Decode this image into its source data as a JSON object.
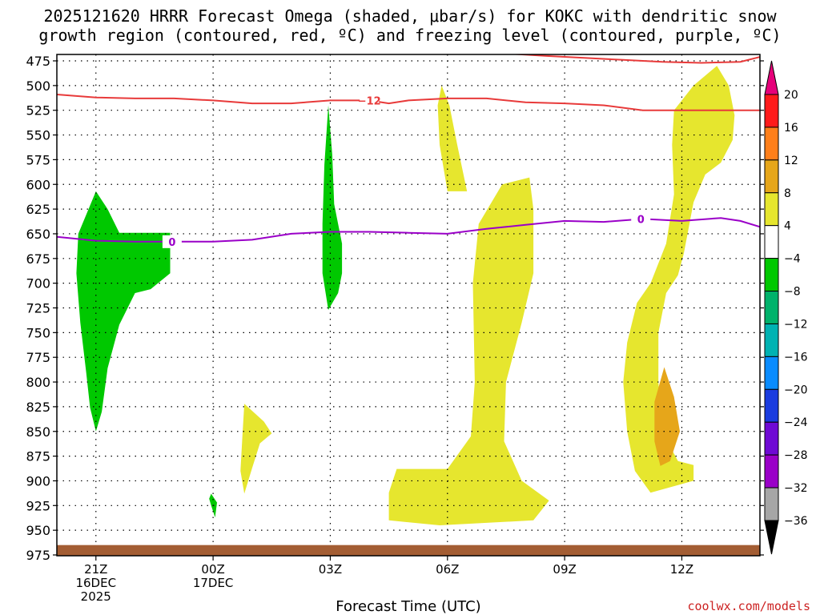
{
  "chart_data": {
    "type": "heatmap",
    "title": "2025121620 HRRR Forecast Omega (shaded, μbar/s) for KOKC with dendritic snow growth region (contoured, red, ºC) and freezing level (contoured, purple, ºC)",
    "title_line1": "2025121620 HRRR Forecast Omega (shaded, μbar/s) for KOKC with dendritic snow",
    "title_line2": "growth region (contoured, red, ºC) and freezing level (contoured, purple, ºC)",
    "xlabel": "Forecast Time (UTC)",
    "credit": "coolwx.com/models",
    "x_range_hours": [
      20,
      38
    ],
    "y_range_mb": [
      475,
      975
    ],
    "y_ticks": [
      475,
      500,
      525,
      550,
      575,
      600,
      625,
      650,
      675,
      700,
      725,
      750,
      775,
      800,
      825,
      850,
      875,
      900,
      925,
      950,
      975
    ],
    "x_ticks": [
      {
        "hour": 21,
        "lines": [
          "21Z",
          "16DEC",
          "2025"
        ]
      },
      {
        "hour": 24,
        "lines": [
          "00Z",
          "17DEC"
        ]
      },
      {
        "hour": 27,
        "lines": [
          "03Z"
        ]
      },
      {
        "hour": 30,
        "lines": [
          "06Z"
        ]
      },
      {
        "hour": 33,
        "lines": [
          "09Z"
        ]
      },
      {
        "hour": 36,
        "lines": [
          "12Z"
        ]
      }
    ],
    "grid": true,
    "colorbar": {
      "labels": [
        "20",
        "16",
        "12",
        "8",
        "4",
        "−4",
        "−8",
        "−12",
        "−16",
        "−20",
        "−24",
        "−28",
        "−32",
        "−36"
      ],
      "colors": [
        "#ff1a1a",
        "#ff7f1a",
        "#e6a61a",
        "#e6e62e",
        "#ffffff",
        "#00c800",
        "#00b26b",
        "#00b2b2",
        "#0a8cff",
        "#1a3cdf",
        "#6f0ad4",
        "#9a00c8",
        "#a6a6a6"
      ],
      "top_arrow_color": "#e6007a",
      "bottom_arrow_color": "#000000"
    },
    "omega_regions": [
      {
        "color": "#00c800",
        "points": [
          [
            21.0,
            607
          ],
          [
            21.3,
            625
          ],
          [
            21.6,
            649
          ],
          [
            22.9,
            649
          ],
          [
            22.9,
            690
          ],
          [
            22.4,
            706
          ],
          [
            22.0,
            710
          ],
          [
            21.6,
            742
          ],
          [
            21.3,
            786
          ],
          [
            21.15,
            830
          ],
          [
            21.0,
            850
          ],
          [
            20.85,
            826
          ],
          [
            20.75,
            790
          ],
          [
            20.6,
            740
          ],
          [
            20.5,
            690
          ],
          [
            20.55,
            650
          ]
        ]
      },
      {
        "color": "#00c800",
        "points": [
          [
            26.95,
            520
          ],
          [
            27.05,
            570
          ],
          [
            27.1,
            620
          ],
          [
            27.3,
            660
          ],
          [
            27.3,
            690
          ],
          [
            27.2,
            710
          ],
          [
            26.95,
            727
          ],
          [
            26.8,
            690
          ],
          [
            26.8,
            640
          ],
          [
            26.85,
            580
          ]
        ]
      },
      {
        "color": "#00c800",
        "points": [
          [
            23.95,
            913
          ],
          [
            24.1,
            922
          ],
          [
            24.05,
            937
          ],
          [
            23.95,
            925
          ],
          [
            23.9,
            918
          ]
        ]
      },
      {
        "color": "#e6e62e",
        "points": [
          [
            29.85,
            500
          ],
          [
            30.05,
            520
          ],
          [
            30.25,
            560
          ],
          [
            30.5,
            607
          ],
          [
            30.0,
            607
          ],
          [
            29.8,
            560
          ],
          [
            29.75,
            520
          ]
        ]
      },
      {
        "color": "#e6e62e",
        "points": [
          [
            31.4,
            600
          ],
          [
            32.1,
            593
          ],
          [
            32.2,
            625
          ],
          [
            32.2,
            690
          ],
          [
            31.9,
            740
          ],
          [
            31.5,
            800
          ],
          [
            31.45,
            860
          ],
          [
            31.9,
            900
          ],
          [
            32.6,
            920
          ],
          [
            32.2,
            940
          ],
          [
            29.8,
            945
          ],
          [
            28.5,
            940
          ],
          [
            28.5,
            912
          ],
          [
            28.7,
            888
          ],
          [
            30.0,
            888
          ],
          [
            30.6,
            855
          ],
          [
            30.7,
            800
          ],
          [
            30.65,
            700
          ],
          [
            30.8,
            640
          ]
        ]
      },
      {
        "color": "#e6e62e",
        "points": [
          [
            24.8,
            822
          ],
          [
            25.3,
            840
          ],
          [
            25.5,
            852
          ],
          [
            25.2,
            862
          ],
          [
            25.0,
            887
          ],
          [
            24.8,
            913
          ],
          [
            24.7,
            890
          ],
          [
            24.75,
            855
          ]
        ]
      },
      {
        "color": "#e6e62e",
        "points": [
          [
            36.9,
            480
          ],
          [
            37.2,
            500
          ],
          [
            37.35,
            530
          ],
          [
            37.3,
            555
          ],
          [
            37.0,
            578
          ],
          [
            36.6,
            590
          ],
          [
            36.3,
            618
          ],
          [
            36.05,
            670
          ],
          [
            35.9,
            692
          ],
          [
            35.6,
            710
          ],
          [
            35.4,
            750
          ],
          [
            35.4,
            800
          ],
          [
            35.5,
            850
          ],
          [
            35.9,
            880
          ],
          [
            36.3,
            884
          ],
          [
            36.3,
            900
          ],
          [
            35.2,
            912
          ],
          [
            34.8,
            890
          ],
          [
            34.6,
            850
          ],
          [
            34.5,
            800
          ],
          [
            34.6,
            760
          ],
          [
            34.85,
            720
          ],
          [
            35.2,
            700
          ],
          [
            35.6,
            660
          ],
          [
            35.8,
            610
          ],
          [
            35.75,
            560
          ],
          [
            35.8,
            525
          ],
          [
            36.3,
            500
          ]
        ]
      },
      {
        "color": "#e6a61a",
        "points": [
          [
            35.55,
            785
          ],
          [
            35.8,
            815
          ],
          [
            35.95,
            850
          ],
          [
            35.7,
            880
          ],
          [
            35.45,
            885
          ],
          [
            35.3,
            860
          ],
          [
            35.3,
            820
          ]
        ]
      }
    ],
    "freezing_level": {
      "label": "0",
      "color": "#9a00c8",
      "x": [
        20,
        21,
        22,
        23,
        24,
        25,
        26,
        27,
        28,
        29,
        30,
        31,
        32,
        33,
        34,
        35,
        36,
        37,
        37.5,
        38
      ],
      "y": [
        653,
        657,
        658,
        658,
        658,
        656,
        650,
        648,
        648,
        649,
        650,
        645,
        641,
        637,
        638,
        635,
        637,
        634,
        637,
        643
      ]
    },
    "dgz_top": {
      "color": "#e83a3a",
      "x": [
        31.7,
        32.5,
        33.5,
        34.5,
        35.5,
        36.5,
        37.5,
        38
      ],
      "y": [
        468,
        470,
        472,
        474,
        476,
        477,
        476,
        471
      ]
    },
    "dgz_bottom": {
      "label": "−12",
      "color": "#e83a3a",
      "x": [
        20,
        21,
        22,
        23,
        24,
        25,
        26,
        27,
        28,
        28.5,
        29,
        30,
        31,
        32,
        33,
        34,
        35,
        36,
        37,
        38
      ],
      "y": [
        509,
        512,
        513,
        513,
        515,
        518,
        518,
        515,
        515,
        518,
        515,
        513,
        513,
        517,
        518,
        520,
        525,
        525,
        525,
        525
      ]
    },
    "terrain": {
      "color": "#a35d33",
      "top_mb": 965
    }
  }
}
